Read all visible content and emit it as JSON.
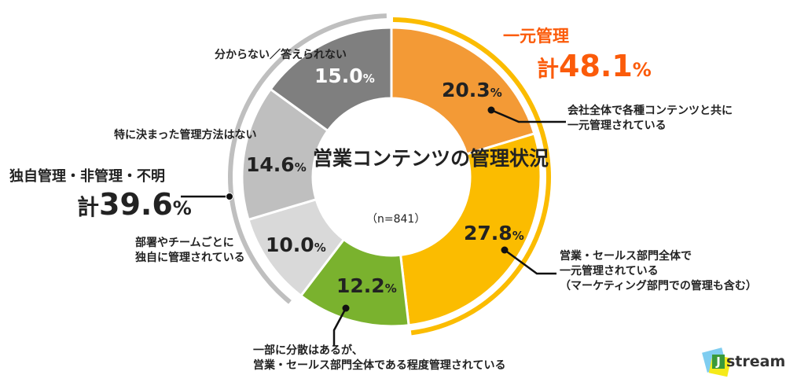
{
  "chart_data": {
    "type": "pie",
    "title": "営業コンテンツの管理状況",
    "n_label": "（n=841）",
    "unit": "%",
    "slices": [
      {
        "label": "会社全体で各種コンテンツと共に一元管理されている",
        "label_lines": [
          "会社全体で各種コンテンツと共に",
          "一元管理されている"
        ],
        "value": 20.3,
        "display": "20.3",
        "color": "#f39a36"
      },
      {
        "label": "営業・セールス部門全体で一元管理されている（マーケティング部門での管理も含む）",
        "label_lines": [
          "営業・セールス部門全体で",
          "一元管理されている",
          "（マーケティング部門での管理も含む）"
        ],
        "value": 27.8,
        "display": "27.8",
        "color": "#fbbc00"
      },
      {
        "label": "一部に分散はあるが、営業・セールス部門全体である程度管理されている",
        "label_lines": [
          "一部に分散はあるが、",
          "営業・セールス部門全体である程度管理されている"
        ],
        "value": 12.2,
        "display": "12.2",
        "color": "#7ab22e"
      },
      {
        "label": "部署やチームごとに独自に管理されている",
        "label_lines": [
          "部署やチームごとに",
          "独自に管理されている"
        ],
        "value": 10.0,
        "display": "10.0",
        "color": "#d9d9d9"
      },
      {
        "label": "特に決まった管理方法はない",
        "label_lines": [
          "特に決まった管理方法はない"
        ],
        "value": 14.6,
        "display": "14.6",
        "color": "#bfbfbf"
      },
      {
        "label": "分からない／答えられない",
        "label_lines": [
          "分からない／答えられない"
        ],
        "value": 15.0,
        "display": "15.0",
        "color": "#7f7f7f"
      }
    ],
    "groups": [
      {
        "name": "一元管理",
        "prefix": "計",
        "total": "48.1",
        "unit": "%",
        "color": "#fb5b0a",
        "arc_color": "#fbbc00"
      },
      {
        "name": "独自管理・非管理・不明",
        "prefix": "計",
        "total": "39.6",
        "unit": "%",
        "color": "#222222",
        "arc_color": "#bfbfbf"
      }
    ]
  },
  "logo": {
    "text": "stream",
    "letter": "J"
  }
}
